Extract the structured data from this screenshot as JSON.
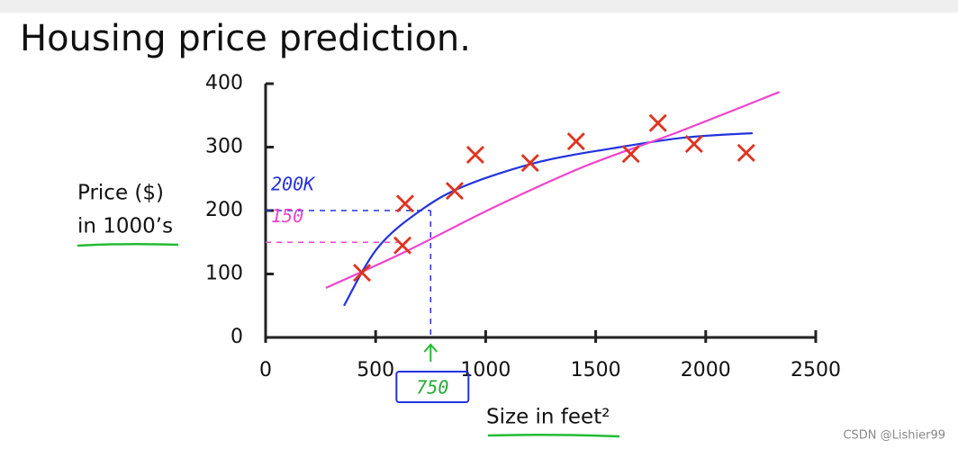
{
  "chart_data": {
    "type": "scatter",
    "title": "Housing price prediction.",
    "y_label": [
      "Price ($)",
      "in 1000’s"
    ],
    "x_label": "Size in feet²",
    "xlim": [
      0,
      2500
    ],
    "ylim": [
      0,
      400
    ],
    "xticks": [
      0,
      500,
      1000,
      1500,
      2000,
      2500
    ],
    "yticks": [
      0,
      100,
      200,
      300,
      400
    ],
    "series": [
      {
        "mode": "markers",
        "color": "#e0321e",
        "x": [
          438,
          634,
          622,
          859,
          953,
          1202,
          1411,
          1660,
          1783,
          1947,
          2184
        ],
        "values": [
          102,
          211,
          145,
          231,
          288,
          275,
          309,
          289,
          338,
          305,
          291
        ]
      },
      {
        "mode": "line",
        "color": "#2233dd",
        "x": [
          356,
          511,
          716,
          920,
          1247,
          1575,
          1902,
          2213
        ],
        "values": [
          50,
          142,
          203,
          241,
          277,
          298,
          315,
          322
        ]
      },
      {
        "mode": "line",
        "color": "#ee44cc",
        "x": [
          274,
          634,
          1043,
          1452,
          1861,
          2335
        ],
        "values": [
          78,
          135,
          206,
          270,
          322,
          387
        ]
      }
    ],
    "annotations": [
      {
        "text": "200K",
        "x": 750,
        "y": 200,
        "color": "#2233dd"
      },
      {
        "text": "150",
        "x": 600,
        "y": 150,
        "color": "#ee44cc"
      },
      {
        "text": "750",
        "x": 750,
        "color": "#2233dd"
      }
    ],
    "watermark": "CSDN @Lishier99"
  }
}
